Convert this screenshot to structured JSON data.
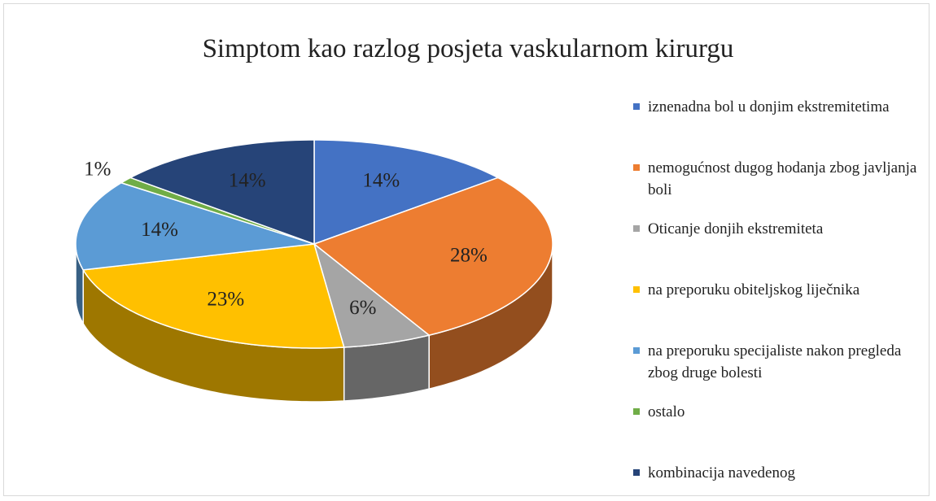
{
  "chart_data": {
    "type": "pie",
    "title": "Simptom kao razlog posjeta vaskularnom kirurgu",
    "categories": [
      "iznenadna bol u donjim ekstremitetima",
      "nemogućnost dugog hodanja zbog javljanja boli",
      "Oticanje donjih ekstremiteta",
      "na preporuku obiteljskog liječnika",
      "na preporuku specijaliste nakon pregleda zbog druge bolesti",
      "ostalo",
      "kombinacija navedenog"
    ],
    "values": [
      14,
      28,
      6,
      23,
      14,
      1,
      14
    ],
    "value_labels": [
      "14%",
      "28%",
      "6%",
      "23%",
      "14%",
      "1%",
      "14%"
    ],
    "colors": [
      "#4472c4",
      "#ed7d31",
      "#a5a5a5",
      "#ffc000",
      "#5b9bd5",
      "#70ad47",
      "#264478"
    ],
    "legend": "right"
  }
}
